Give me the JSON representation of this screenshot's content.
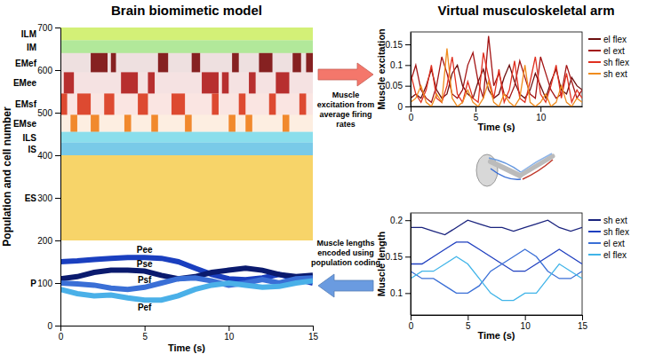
{
  "diagram": {
    "title_left": "Brain biomimetic model",
    "title_right": "Virtual musculoskeletal arm",
    "arrows": [
      {
        "label": [
          "Muscle",
          "excitation from",
          "average firing",
          "rates"
        ],
        "color": "#f4776b",
        "direction": "right"
      },
      {
        "label": [
          "Muscle lengths",
          "encoded using",
          "population coding"
        ],
        "color": "#6a9be0",
        "direction": "left"
      }
    ]
  },
  "chart_data": [
    {
      "type": "raster",
      "xlabel": "Time (s)",
      "ylabel": "Population and cell number",
      "xlim": [
        0,
        15
      ],
      "ylim": [
        0,
        700
      ],
      "xticks": [
        0,
        5,
        10,
        15
      ],
      "yticks": [
        0,
        100,
        200,
        300,
        400,
        500,
        600,
        700
      ],
      "populations": [
        {
          "name": "ILM",
          "cells": [
            670,
            700
          ],
          "color": "#b5e61d"
        },
        {
          "name": "IM",
          "cells": [
            640,
            670
          ],
          "color": "#7ed957"
        },
        {
          "name": "EMef",
          "cells": [
            595,
            640
          ],
          "color": "#7a0c0c",
          "bursts": [
            [
              1.8,
              2.8
            ],
            [
              3.0,
              3.3
            ],
            [
              5.8,
              6.4
            ],
            [
              7.8,
              8.3
            ],
            [
              10.2,
              10.6
            ],
            [
              11.8,
              12.6
            ],
            [
              13.8,
              14.3
            ],
            [
              14.6,
              15
            ]
          ]
        },
        {
          "name": "EMee",
          "cells": [
            545,
            595
          ],
          "color": "#b01c1c",
          "bursts": [
            [
              0.2,
              0.8
            ],
            [
              3.6,
              4.6
            ],
            [
              5.2,
              5.6
            ],
            [
              8.4,
              9.4
            ],
            [
              9.6,
              10.0
            ],
            [
              11.2,
              11.6
            ],
            [
              12.8,
              13.6
            ]
          ]
        },
        {
          "name": "EMsf",
          "cells": [
            495,
            545
          ],
          "color": "#d9381e",
          "bursts": [
            [
              0,
              0.4
            ],
            [
              1.0,
              1.8
            ],
            [
              2.6,
              3.2
            ],
            [
              4.6,
              5.2
            ],
            [
              6.6,
              7.4
            ],
            [
              9.0,
              9.4
            ],
            [
              10.6,
              11.0
            ],
            [
              12.4,
              12.8
            ],
            [
              14.2,
              14.6
            ]
          ]
        },
        {
          "name": "EMse",
          "cells": [
            455,
            495
          ],
          "color": "#f07d1a",
          "bursts": [
            [
              0.6,
              1.0
            ],
            [
              1.8,
              2.3
            ],
            [
              3.8,
              4.2
            ],
            [
              5.4,
              5.8
            ],
            [
              7.4,
              7.8
            ],
            [
              10.0,
              10.4
            ],
            [
              11.0,
              11.4
            ],
            [
              13.2,
              13.6
            ]
          ]
        },
        {
          "name": "ILS",
          "cells": [
            430,
            455
          ],
          "color": "#3cc8e0"
        },
        {
          "name": "IS",
          "cells": [
            400,
            430
          ],
          "color": "#1fa6d8"
        },
        {
          "name": "ES",
          "cells": [
            200,
            400
          ],
          "color": "#f2b705"
        },
        {
          "name": "P",
          "cells": [
            0,
            200
          ]
        }
      ],
      "x": [
        0,
        1,
        2,
        3,
        4,
        5,
        6,
        7,
        8,
        9,
        10,
        11,
        12,
        13,
        14,
        15
      ],
      "series": [
        {
          "name": "Pee",
          "color": "#1a3fbf",
          "values": [
            150,
            152,
            155,
            158,
            160,
            160,
            158,
            150,
            135,
            120,
            110,
            108,
            112,
            120,
            110,
            100
          ]
        },
        {
          "name": "Pse",
          "color": "#0a1a6e",
          "values": [
            110,
            115,
            125,
            130,
            130,
            128,
            118,
            110,
            115,
            125,
            130,
            135,
            130,
            120,
            115,
            118
          ]
        },
        {
          "name": "Psf",
          "color": "#3a6fd6",
          "values": [
            100,
            98,
            95,
            88,
            85,
            90,
            100,
            110,
            112,
            105,
            95,
            100,
            108,
            100,
            110,
            112
          ]
        },
        {
          "name": "Pef",
          "color": "#4ab0e8",
          "values": [
            85,
            75,
            70,
            72,
            65,
            60,
            60,
            70,
            85,
            95,
            100,
            95,
            90,
            92,
            100,
            105
          ]
        }
      ]
    },
    {
      "type": "line",
      "xlabel": "Time (s)",
      "ylabel": "Muscle excitation",
      "xlim": [
        0,
        13.2
      ],
      "ylim": [
        0,
        0.18
      ],
      "xticks": [
        0,
        5,
        10
      ],
      "yticks": [
        0,
        0.05,
        0.1,
        0.15
      ],
      "legend": "right",
      "x": [
        0,
        0.4,
        0.8,
        1.2,
        1.6,
        2,
        2.4,
        2.8,
        3.2,
        3.6,
        4,
        4.4,
        4.8,
        5.2,
        5.6,
        6,
        6.4,
        6.8,
        7.2,
        7.6,
        8,
        8.4,
        8.8,
        9.2,
        9.6,
        10,
        10.4,
        10.8,
        11.2,
        11.6,
        12,
        12.4,
        12.8,
        13.2
      ],
      "series": [
        {
          "name": "el flex",
          "color": "#6b0f0f",
          "values": [
            0.02,
            0.03,
            0.02,
            0.05,
            0.09,
            0.04,
            0.02,
            0.03,
            0.08,
            0.1,
            0.05,
            0.03,
            0.02,
            0.06,
            0.09,
            0.04,
            0.02,
            0.03,
            0.07,
            0.1,
            0.06,
            0.03,
            0.02,
            0.04,
            0.08,
            0.05,
            0.02,
            0.06,
            0.09,
            0.04,
            0.03,
            0.07,
            0.05,
            0.04
          ]
        },
        {
          "name": "el ext",
          "color": "#a31515",
          "values": [
            0.06,
            0.1,
            0.04,
            0.02,
            0.01,
            0.05,
            0.12,
            0.08,
            0.03,
            0.02,
            0.04,
            0.1,
            0.13,
            0.06,
            0.02,
            0.17,
            0.05,
            0.08,
            0.03,
            0.02,
            0.05,
            0.11,
            0.07,
            0.03,
            0.02,
            0.12,
            0.08,
            0.04,
            0.02,
            0.03,
            0.1,
            0.06,
            0.02,
            0.04
          ]
        },
        {
          "name": "sh flex",
          "color": "#e03020",
          "values": [
            0.08,
            0.03,
            0.01,
            0.04,
            0.1,
            0.02,
            0.01,
            0.05,
            0.12,
            0.03,
            0.01,
            0.06,
            0.02,
            0.01,
            0.13,
            0.07,
            0.02,
            0.09,
            0.01,
            0.04,
            0.11,
            0.02,
            0.01,
            0.06,
            0.12,
            0.03,
            0.01,
            0.05,
            0.1,
            0.02,
            0.08,
            0.01,
            0.04,
            0.02
          ]
        },
        {
          "name": "sh ext",
          "color": "#f08c1e",
          "values": [
            0.01,
            0.02,
            0.05,
            0.01,
            0,
            0.03,
            0.01,
            0.14,
            0.02,
            0,
            0.01,
            0.04,
            0.01,
            0,
            0.02,
            0.06,
            0.01,
            0,
            0.03,
            0.01,
            0,
            0.02,
            0.1,
            0.01,
            0,
            0.01,
            0.03,
            0,
            0.01,
            0.05,
            0.01,
            0,
            0.02,
            0.01
          ]
        }
      ]
    },
    {
      "type": "line",
      "xlabel": "Time (s)",
      "ylabel": "Muscle length",
      "xlim": [
        0,
        15
      ],
      "ylim": [
        0.07,
        0.21
      ],
      "xticks": [
        0,
        5,
        10,
        15
      ],
      "yticks": [
        0.1,
        0.15,
        0.2
      ],
      "legend": "right",
      "x": [
        0,
        1,
        2,
        3,
        4,
        5,
        6,
        7,
        8,
        9,
        10,
        11,
        12,
        13,
        14,
        15
      ],
      "series": [
        {
          "name": "sh ext",
          "color": "#1a237e",
          "values": [
            0.19,
            0.19,
            0.185,
            0.18,
            0.19,
            0.2,
            0.195,
            0.19,
            0.19,
            0.185,
            0.19,
            0.195,
            0.2,
            0.19,
            0.185,
            0.19
          ]
        },
        {
          "name": "sh flex",
          "color": "#1f3fbf",
          "values": [
            0.14,
            0.14,
            0.15,
            0.16,
            0.17,
            0.17,
            0.16,
            0.15,
            0.14,
            0.13,
            0.13,
            0.14,
            0.15,
            0.16,
            0.15,
            0.14
          ]
        },
        {
          "name": "el ext",
          "color": "#3a6fd6",
          "values": [
            0.13,
            0.12,
            0.12,
            0.11,
            0.1,
            0.1,
            0.11,
            0.13,
            0.14,
            0.15,
            0.16,
            0.15,
            0.13,
            0.12,
            0.12,
            0.13
          ]
        },
        {
          "name": "el flex",
          "color": "#40b4e8",
          "values": [
            0.12,
            0.13,
            0.13,
            0.14,
            0.15,
            0.14,
            0.12,
            0.1,
            0.09,
            0.09,
            0.1,
            0.1,
            0.12,
            0.14,
            0.13,
            0.12
          ]
        }
      ]
    }
  ]
}
